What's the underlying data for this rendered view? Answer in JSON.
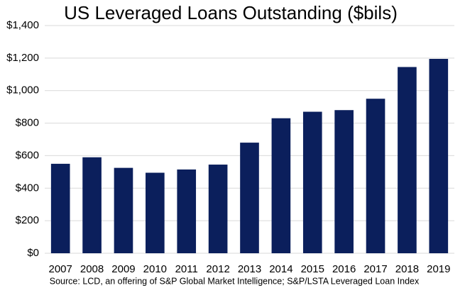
{
  "chart_data": {
    "type": "bar",
    "title": "US Leveraged Loans Outstanding ($bils)",
    "categories": [
      "2007",
      "2008",
      "2009",
      "2010",
      "2011",
      "2012",
      "2013",
      "2014",
      "2015",
      "2016",
      "2017",
      "2018",
      "2019"
    ],
    "values": [
      550,
      590,
      525,
      495,
      515,
      545,
      680,
      830,
      870,
      880,
      950,
      1145,
      1195
    ],
    "color": "#0b1f5c",
    "ylim": [
      0,
      1400
    ],
    "yticks": [
      {
        "value": 0,
        "label": "$0"
      },
      {
        "value": 200,
        "label": "$200"
      },
      {
        "value": 400,
        "label": "$400"
      },
      {
        "value": 600,
        "label": "$600"
      },
      {
        "value": 800,
        "label": "$800"
      },
      {
        "value": 1000,
        "label": "$1,000"
      },
      {
        "value": 1200,
        "label": "$1,200"
      },
      {
        "value": 1400,
        "label": "$1,400"
      }
    ],
    "grid": true,
    "source": "Source: LCD, an offering of S&P Global Market Intelligence; S&P/LSTA Leveraged Loan Index"
  }
}
